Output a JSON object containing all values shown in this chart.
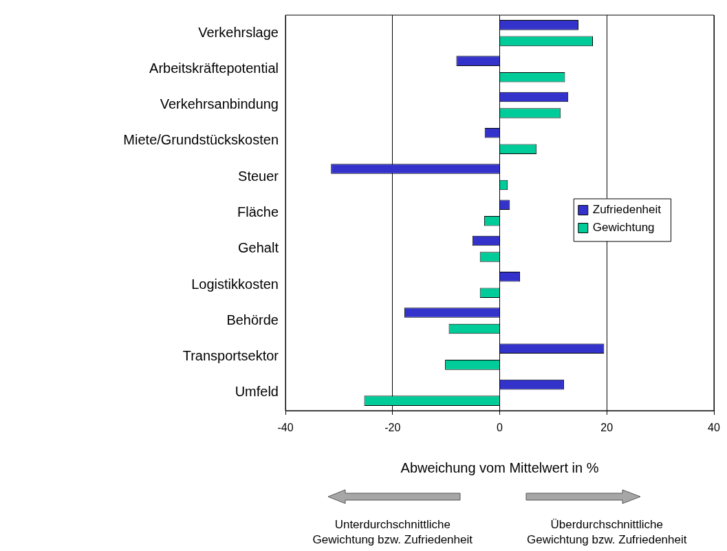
{
  "chart_data": {
    "type": "bar",
    "orientation": "horizontal",
    "xlabel": "Abweichung vom Mittelwert in %",
    "categories": [
      "Verkehrslage",
      "Arbeitskräftepotential",
      "Verkehrsanbindung",
      "Miete/Grundstückskosten",
      "Steuer",
      "Fläche",
      "Gehalt",
      "Logistikkosten",
      "Behörde",
      "Transportsektor",
      "Umfeld"
    ],
    "series": [
      {
        "name": "Zufriedenheit",
        "color": "#3333cc",
        "values": [
          14.7,
          -8.1,
          12.8,
          -2.8,
          -31.5,
          1.9,
          -5.1,
          3.8,
          -17.8,
          19.5,
          12.0
        ]
      },
      {
        "name": "Gewichtung",
        "color": "#00cc99",
        "values": [
          17.4,
          12.2,
          11.4,
          6.9,
          1.5,
          -2.9,
          -3.7,
          -3.7,
          -9.5,
          -10.2,
          -25.3
        ]
      }
    ],
    "xlim": [
      -40,
      40
    ],
    "xticks": [
      -40,
      -20,
      0,
      20,
      40
    ],
    "grid": "x",
    "legend": "right",
    "annotations": [
      "Unterdurchschnittliche Gewichtung bzw. Zufriedenheit",
      "Überdurchschnittliche Gewichtung bzw. Zufriedenheit"
    ]
  }
}
